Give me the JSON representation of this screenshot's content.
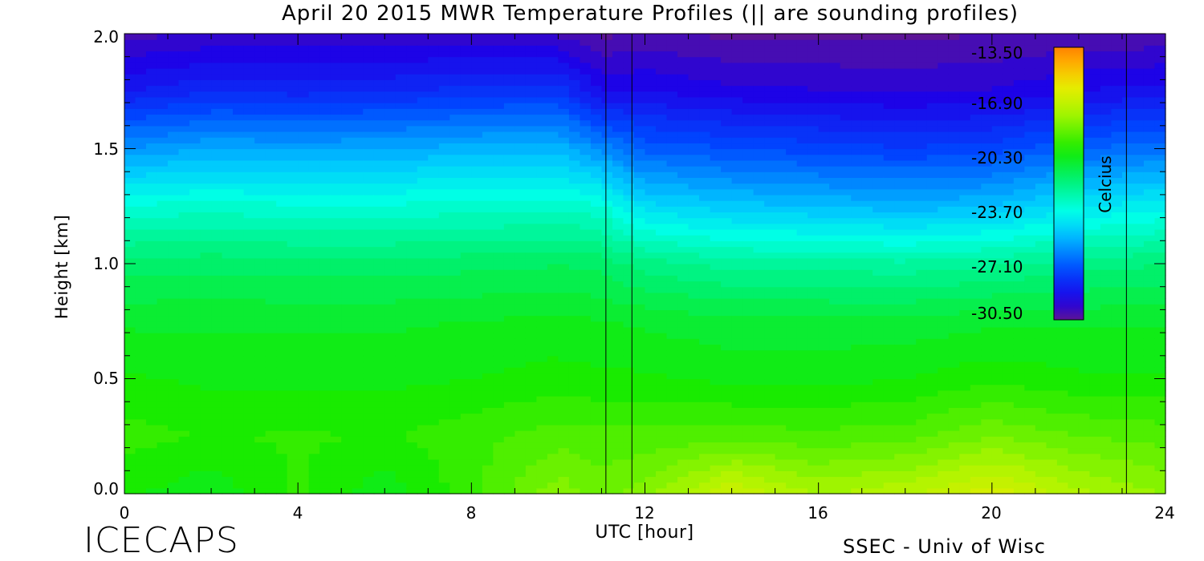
{
  "chart_data": {
    "type": "heatmap",
    "title": "April 20 2015 MWR Temperature Profiles (|| are sounding profiles)",
    "xlabel": "UTC [hour]",
    "ylabel": "Height [km]",
    "xlim": [
      0,
      24
    ],
    "ylim": [
      0,
      2
    ],
    "x_ticks": [
      "0",
      "4",
      "8",
      "12",
      "16",
      "20",
      "24"
    ],
    "y_ticks": [
      "0.0",
      "0.5",
      "1.0",
      "1.5",
      "2.0"
    ],
    "z_label": "Celcius",
    "z_range": [
      -30.5,
      -13.5
    ],
    "colorbar_ticks": [
      "-13.50",
      "-16.90",
      "-20.30",
      "-23.70",
      "-27.10",
      "-30.50"
    ],
    "sounding_times_hour": [
      11.1,
      11.7,
      23.1
    ],
    "profile_heights_km": [
      0.0,
      0.25,
      0.5,
      0.75,
      1.0,
      1.25,
      1.5,
      1.75,
      2.0
    ],
    "profile_times_hour": [
      0,
      2,
      4,
      6,
      8,
      10,
      11,
      12,
      14,
      16,
      18,
      20,
      22,
      24
    ],
    "temperature_profiles_c": [
      [
        -20.0,
        -19.5,
        -20.0,
        -20.6,
        -21.6,
        -23.4,
        -26.0,
        -28.6,
        -30.0
      ],
      [
        -20.4,
        -19.7,
        -20.2,
        -20.6,
        -21.5,
        -23.3,
        -25.6,
        -28.2,
        -29.8
      ],
      [
        -19.6,
        -19.6,
        -20.2,
        -20.6,
        -21.6,
        -23.4,
        -25.7,
        -28.3,
        -29.8
      ],
      [
        -20.4,
        -19.7,
        -20.2,
        -20.6,
        -21.6,
        -23.4,
        -25.6,
        -28.2,
        -29.8
      ],
      [
        -19.4,
        -19.4,
        -20.1,
        -20.5,
        -21.5,
        -23.3,
        -25.4,
        -28.0,
        -29.7
      ],
      [
        -18.1,
        -19.0,
        -19.9,
        -20.4,
        -21.4,
        -23.2,
        -25.3,
        -27.9,
        -29.9
      ],
      [
        -18.6,
        -19.1,
        -20.0,
        -20.5,
        -21.5,
        -23.4,
        -26.2,
        -29.0,
        -30.4
      ],
      [
        -18.2,
        -19.1,
        -20.0,
        -20.6,
        -22.0,
        -24.6,
        -27.0,
        -29.0,
        -30.2
      ],
      [
        -16.6,
        -19.0,
        -20.2,
        -20.8,
        -22.4,
        -25.0,
        -27.3,
        -29.3,
        -30.4
      ],
      [
        -17.6,
        -19.1,
        -20.2,
        -20.8,
        -22.4,
        -25.2,
        -27.5,
        -29.4,
        -30.4
      ],
      [
        -17.2,
        -19.0,
        -20.1,
        -20.8,
        -22.5,
        -25.4,
        -27.7,
        -29.5,
        -30.4
      ],
      [
        -16.4,
        -18.4,
        -19.8,
        -20.6,
        -22.3,
        -25.2,
        -27.5,
        -29.4,
        -30.3
      ],
      [
        -17.4,
        -18.8,
        -20.0,
        -20.6,
        -22.0,
        -24.4,
        -26.9,
        -29.0,
        -30.2
      ],
      [
        -18.0,
        -19.0,
        -20.0,
        -20.6,
        -21.8,
        -24.0,
        -26.6,
        -28.8,
        -30.2
      ]
    ]
  },
  "footer": {
    "left": "ICECAPS",
    "right": "SSEC - Univ of Wisc"
  }
}
